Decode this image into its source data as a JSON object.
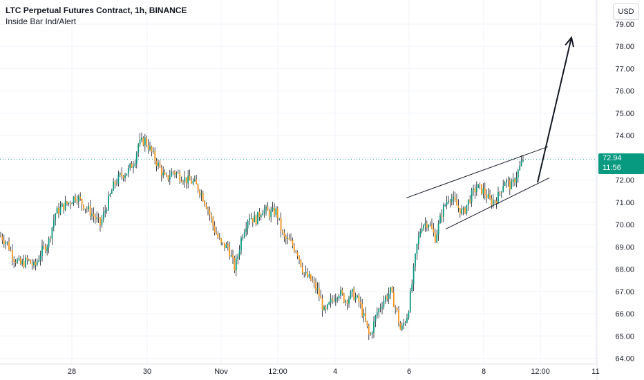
{
  "legend": {
    "title": "LTC Perpetual Futures Contract, 1h, BINANCE",
    "indicator": "Inside Bar Ind/Alert"
  },
  "currency": "USD",
  "last_price": {
    "value": "72.94",
    "countdown": "11:56"
  },
  "colors": {
    "up": "#089981",
    "down": "#f7931a",
    "wick": "#131722",
    "grid": "#f0f3fa",
    "axis_text": "#131722",
    "price_line": "#089981"
  },
  "chart_data": {
    "type": "candlestick",
    "title": "LTC Perpetual Futures Contract, 1h, BINANCE",
    "ylim": [
      63.7,
      79.2
    ],
    "y_ticks": [
      "64.00",
      "65.00",
      "66.00",
      "67.00",
      "68.00",
      "69.00",
      "70.00",
      "71.00",
      "72.00",
      "73.00",
      "74.00",
      "75.00",
      "76.00",
      "77.00",
      "78.00",
      "79.00"
    ],
    "x_ticks": [
      "28",
      "30",
      "Nov",
      "12:00",
      "4",
      "6",
      "8",
      "12:00",
      "11"
    ],
    "close_path": [
      [
        0,
        69.5
      ],
      [
        10,
        69.2
      ],
      [
        20,
        68.5
      ],
      [
        30,
        68.2
      ],
      [
        40,
        68.4
      ],
      [
        50,
        68.1
      ],
      [
        60,
        68.8
      ],
      [
        70,
        69.2
      ],
      [
        80,
        70.5
      ],
      [
        90,
        70.8
      ],
      [
        100,
        71.0
      ],
      [
        110,
        71.3
      ],
      [
        120,
        70.9
      ],
      [
        130,
        70.6
      ],
      [
        140,
        70.2
      ],
      [
        145,
        70.0
      ],
      [
        155,
        70.9
      ],
      [
        165,
        71.8
      ],
      [
        175,
        72.2
      ],
      [
        185,
        72.4
      ],
      [
        195,
        72.9
      ],
      [
        200,
        73.6
      ],
      [
        210,
        73.8
      ],
      [
        220,
        73.2
      ],
      [
        230,
        72.6
      ],
      [
        240,
        72.0
      ],
      [
        250,
        72.4
      ],
      [
        260,
        72.2
      ],
      [
        270,
        72.0
      ],
      [
        280,
        71.9
      ],
      [
        290,
        71.5
      ],
      [
        300,
        70.8
      ],
      [
        310,
        69.8
      ],
      [
        320,
        69.1
      ],
      [
        330,
        69.0
      ],
      [
        340,
        68.0
      ],
      [
        350,
        69.5
      ],
      [
        360,
        70.4
      ],
      [
        370,
        70.2
      ],
      [
        380,
        70.7
      ],
      [
        390,
        70.5
      ],
      [
        400,
        70.6
      ],
      [
        410,
        69.4
      ],
      [
        420,
        69.2
      ],
      [
        430,
        68.8
      ],
      [
        440,
        67.8
      ],
      [
        450,
        67.5
      ],
      [
        460,
        67.0
      ],
      [
        470,
        66.0
      ],
      [
        480,
        66.6
      ],
      [
        490,
        67.0
      ],
      [
        500,
        66.6
      ],
      [
        510,
        66.9
      ],
      [
        520,
        66.5
      ],
      [
        530,
        65.5
      ],
      [
        535,
        64.9
      ],
      [
        545,
        66.0
      ],
      [
        555,
        66.6
      ],
      [
        565,
        67.0
      ],
      [
        575,
        66.0
      ],
      [
        580,
        65.2
      ],
      [
        590,
        66.0
      ],
      [
        597,
        67.5
      ],
      [
        603,
        69.0
      ],
      [
        610,
        70.0
      ],
      [
        620,
        70.1
      ],
      [
        630,
        69.4
      ],
      [
        640,
        70.6
      ],
      [
        650,
        71.3
      ],
      [
        660,
        70.9
      ],
      [
        670,
        70.5
      ],
      [
        680,
        71.2
      ],
      [
        690,
        71.7
      ],
      [
        700,
        71.5
      ],
      [
        710,
        71.0
      ],
      [
        720,
        71.2
      ],
      [
        730,
        72.0
      ],
      [
        740,
        71.7
      ],
      [
        750,
        72.4
      ],
      [
        757,
        72.94
      ]
    ],
    "annotations": {
      "channel_upper": [
        [
          588,
          71.2
        ],
        [
          793,
          73.5
        ]
      ],
      "channel_lower": [
        [
          645,
          69.8
        ],
        [
          795,
          72.1
        ]
      ],
      "arrow": [
        [
          778,
          71.9
        ],
        [
          827,
          78.4
        ]
      ]
    }
  }
}
